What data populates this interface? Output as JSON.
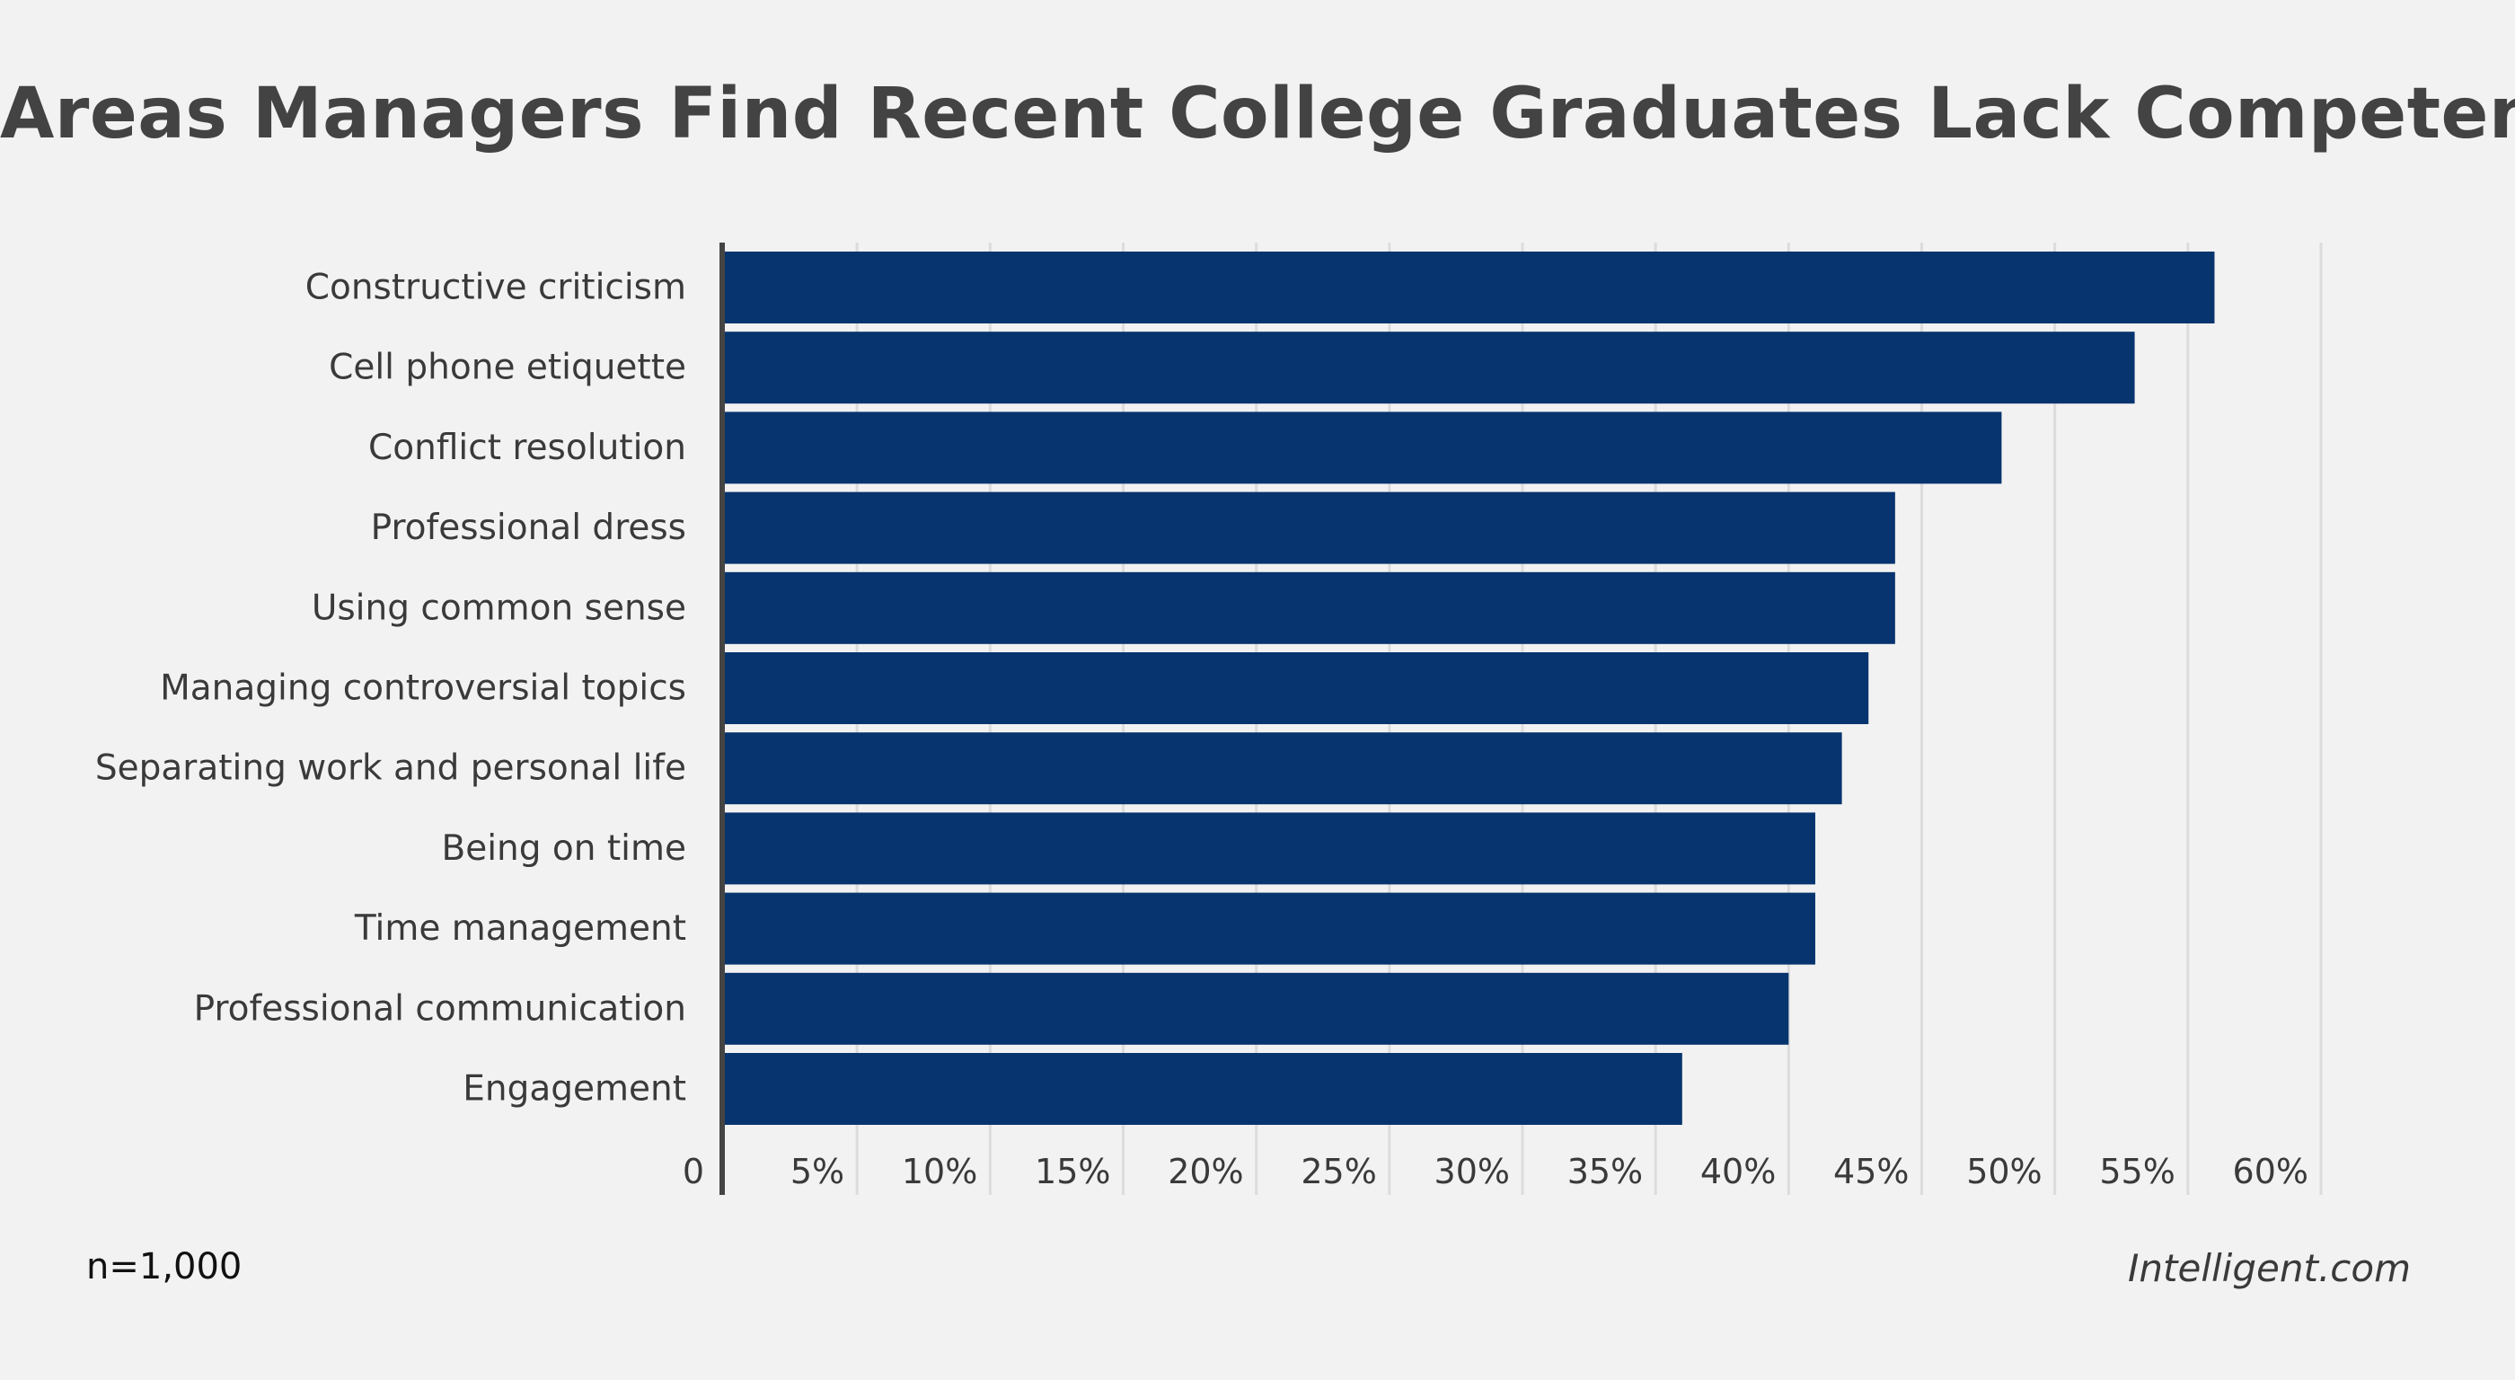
{
  "chart_data": {
    "type": "bar",
    "orientation": "horizontal",
    "title": "Areas Managers Find Recent College Graduates Lack Competence",
    "categories": [
      "Constructive criticism",
      "Cell phone etiquette",
      "Conflict resolution",
      "Professional dress",
      "Using common sense",
      "Managing controversial topics",
      "Separating work and personal life",
      "Being on time",
      "Time management",
      "Professional communication",
      "Engagement"
    ],
    "values": [
      56,
      53,
      48,
      44,
      44,
      43,
      42,
      41,
      41,
      40,
      36
    ],
    "xlim": [
      0,
      60
    ],
    "xticks": [
      0,
      5,
      10,
      15,
      20,
      25,
      30,
      35,
      40,
      45,
      50,
      55,
      60
    ],
    "xtick_labels": [
      "0",
      "5%",
      "10%",
      "15%",
      "20%",
      "25%",
      "30%",
      "35%",
      "40%",
      "45%",
      "50%",
      "55%",
      "60%"
    ],
    "grid": "vertical",
    "bar_color": "#07346e",
    "gridline_color": "#dcdcdc",
    "axis_color": "#444444",
    "footnote": "n=1,000",
    "source": "Intelligent.com"
  }
}
